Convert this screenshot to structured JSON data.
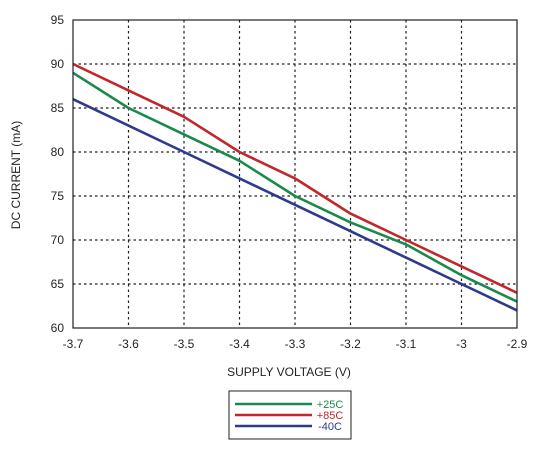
{
  "chart_data": {
    "type": "line",
    "xlabel": "SUPPLY VOLTAGE (V)",
    "ylabel": "DC CURRENT (mA)",
    "xlim": [
      -3.7,
      -2.9
    ],
    "ylim": [
      60,
      95
    ],
    "x_ticks": [
      "-3.7",
      "-3.6",
      "-3.5",
      "-3.4",
      "-3.3",
      "-3.2",
      "-3.1",
      "-3",
      "-2.9"
    ],
    "y_ticks": [
      "60",
      "65",
      "70",
      "75",
      "80",
      "85",
      "90",
      "95"
    ],
    "x_tick_values": [
      -3.7,
      -3.6,
      -3.5,
      -3.4,
      -3.3,
      -3.2,
      -3.1,
      -3.0,
      -2.9
    ],
    "y_tick_values": [
      60,
      65,
      70,
      75,
      80,
      85,
      90,
      95
    ],
    "grid": true,
    "grid_style": "dotted",
    "legend_placement": "below",
    "series": [
      {
        "name": "+25C",
        "color": "#1a8a4a",
        "x": [
          -3.7,
          -3.6,
          -3.5,
          -3.4,
          -3.3,
          -3.2,
          -3.1,
          -3.0,
          -2.9
        ],
        "y": [
          89,
          85,
          82,
          79,
          75,
          72,
          69.5,
          66,
          63
        ]
      },
      {
        "name": "+85C",
        "color": "#c1272d",
        "x": [
          -3.7,
          -3.6,
          -3.5,
          -3.4,
          -3.3,
          -3.2,
          -3.1,
          -3.0,
          -2.9
        ],
        "y": [
          90,
          87,
          84,
          80,
          77,
          73,
          70,
          67,
          64
        ]
      },
      {
        "name": "-40C",
        "color": "#2e3a8c",
        "x": [
          -3.7,
          -3.6,
          -3.5,
          -3.4,
          -3.3,
          -3.2,
          -3.1,
          -3.0,
          -2.9
        ],
        "y": [
          86,
          83,
          80,
          77,
          74,
          71,
          68,
          65,
          62
        ]
      }
    ]
  }
}
